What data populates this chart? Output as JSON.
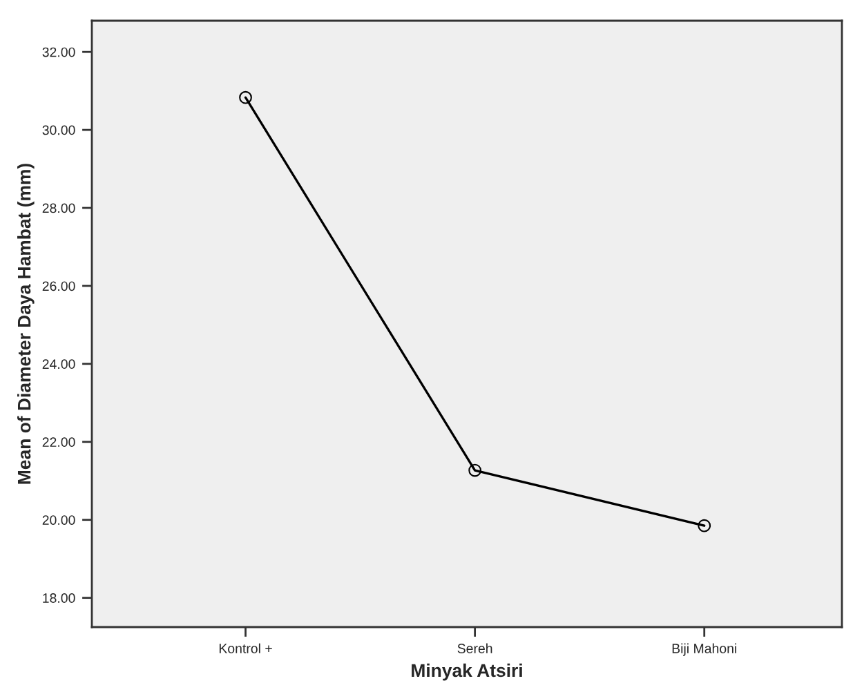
{
  "chart_data": {
    "type": "line",
    "xlabel": "Minyak Atsiri",
    "ylabel": "Mean of Diameter Daya Hambat (mm)",
    "categories": [
      "Kontrol +",
      "Sereh",
      "Biji Mahoni"
    ],
    "series": [
      {
        "color": "#000000",
        "values": [
          30.83,
          21.27,
          19.85
        ]
      }
    ],
    "ylim": [
      17.25,
      32.8
    ],
    "yticks": [
      {
        "value": 18,
        "label": "18.00"
      },
      {
        "value": 20,
        "label": "20.00"
      },
      {
        "value": 22,
        "label": "22.00"
      },
      {
        "value": 24,
        "label": "24.00"
      },
      {
        "value": 26,
        "label": "26.00"
      },
      {
        "value": 28,
        "label": "28.00"
      },
      {
        "value": 30,
        "label": "30.00"
      },
      {
        "value": 32,
        "label": "32.00"
      }
    ],
    "marker": "circle",
    "line_style": "solid"
  }
}
